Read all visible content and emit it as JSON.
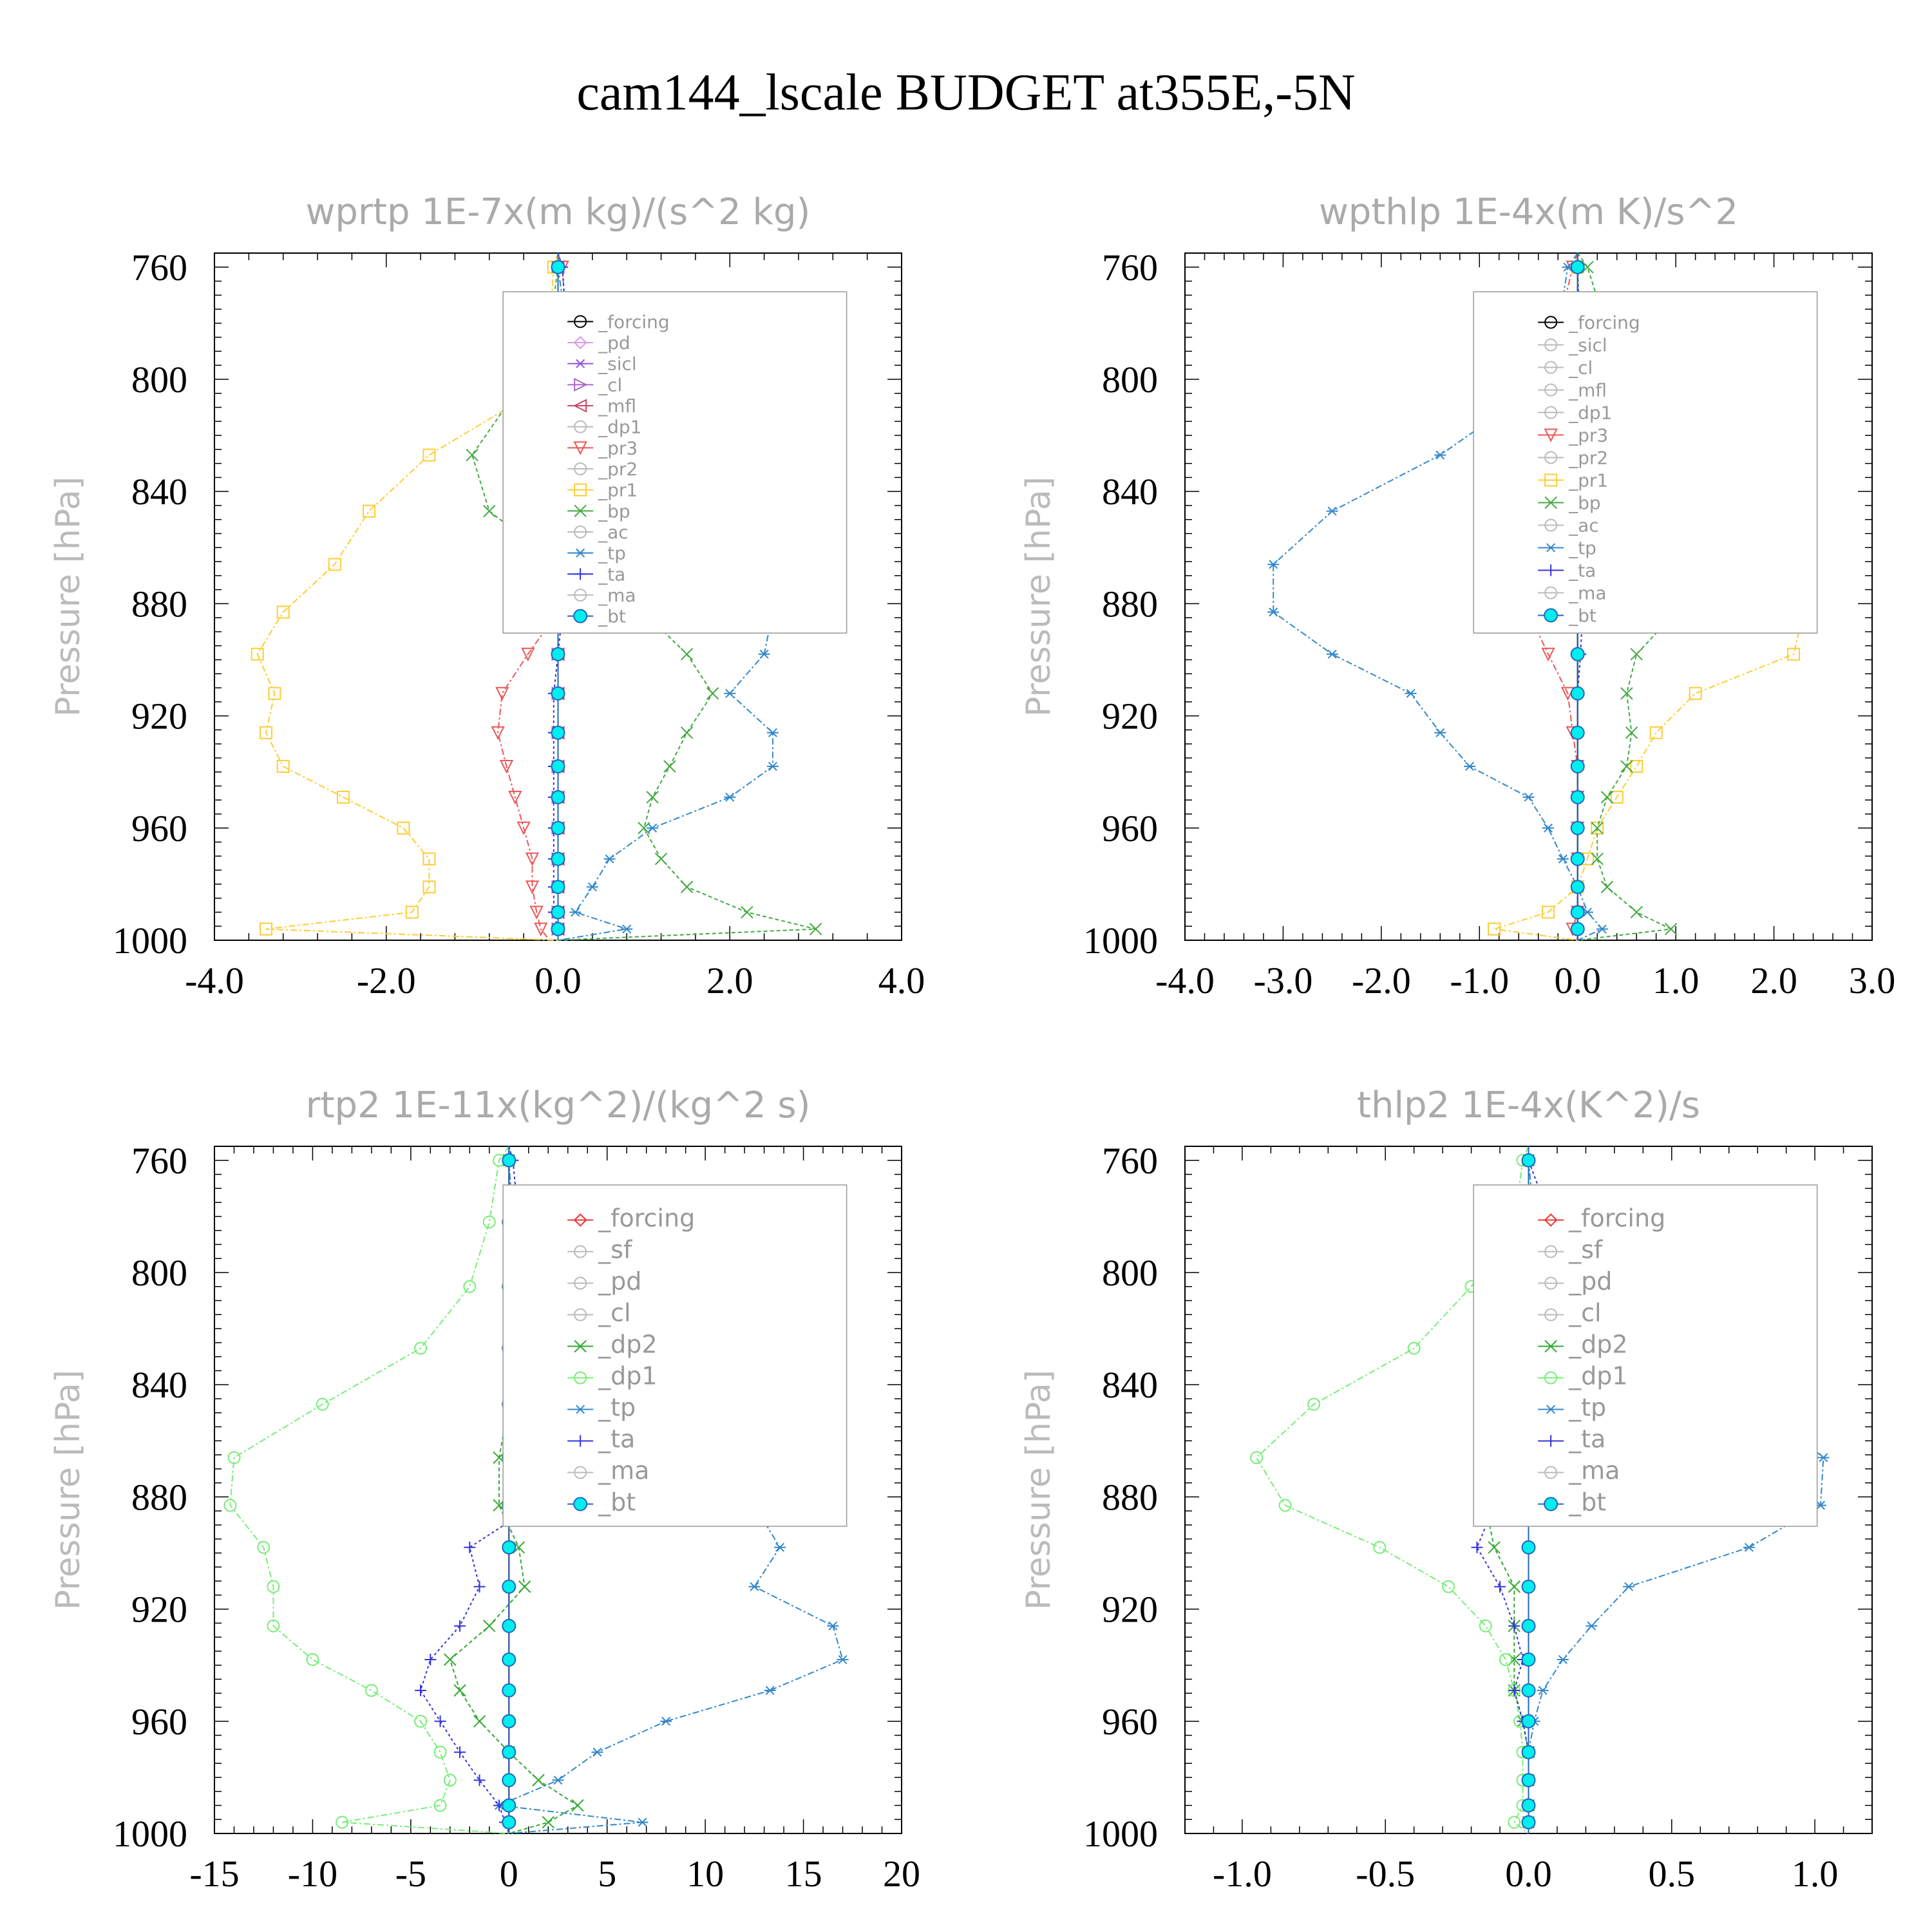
{
  "figure_title": "cam144_lscale  BUDGET at355E,-5N",
  "colors": {
    "forcing": "#000000",
    "pd": "#dd99ee",
    "sicl": "#9955dd",
    "cl": "#aa66cc",
    "mfl": "#cc4466",
    "dp1_w": "#ee6677",
    "pr3": "#ee5555",
    "pr2": "#ffaa66",
    "pr1": "#ffcc33",
    "bp": "#44aa44",
    "ac": "#88ee88",
    "tp": "#3388cc",
    "ta": "#3333dd",
    "ma": "#2266bb",
    "bt": "#00eeee",
    "forcing_v": "#ee3333",
    "sf": "#ee4444",
    "pd_v": "#ffaa44",
    "cl_v": "#ffcc22",
    "dp2": "#33aa33",
    "dp1_v": "#77ee77"
  },
  "chart_data": [
    {
      "type": "line",
      "title": "wprtp   1E-7x(m kg)/(s^2 kg)",
      "ylabel": "Pressure [hPa]",
      "xlabel": "",
      "ylim": [
        1000,
        755
      ],
      "xlim": [
        -4.0,
        4.0
      ],
      "xticks": [
        "-4.0",
        "-2.0",
        "0.0",
        "2.0",
        "4.0"
      ],
      "xtick_values": [
        -4,
        -2,
        0,
        2,
        4
      ],
      "yticks": [
        760,
        800,
        840,
        880,
        920,
        960,
        1000
      ],
      "legend": [
        "_forcing",
        "_pd",
        "_sicl",
        "_cl",
        "_mfl",
        "_dp1",
        "_pr3",
        "_pr2",
        "_pr1",
        "_bp",
        "_ac",
        "_tp",
        "_ta",
        "_ma",
        "_bt"
      ],
      "legend_position": "top-right",
      "y": [
        755,
        760,
        782,
        805,
        827,
        847,
        866,
        883,
        898,
        912,
        926,
        938,
        949,
        960,
        971,
        981,
        990,
        996,
        1000
      ],
      "series": [
        {
          "name": "_forcing",
          "color": "forcing",
          "dash": "",
          "marker": "circle",
          "values": [
            0,
            0,
            0,
            0,
            0,
            0,
            0,
            0,
            0,
            0,
            0,
            0,
            0,
            0,
            0,
            0,
            0,
            0,
            0
          ]
        },
        {
          "name": "_pd",
          "color": "pd",
          "dash": "6 4",
          "marker": "diamond",
          "values": [
            0,
            0,
            0,
            0,
            0,
            0,
            0,
            0,
            0,
            0,
            0,
            0,
            0,
            0,
            0,
            0,
            0,
            0,
            0
          ]
        },
        {
          "name": "_sicl",
          "color": "sicl",
          "dash": "6 4",
          "marker": "star",
          "values": [
            0,
            0,
            0,
            0,
            0,
            0,
            0,
            0,
            0,
            0,
            0,
            0,
            0,
            0,
            0,
            0,
            0,
            0,
            0
          ]
        },
        {
          "name": "_cl",
          "color": "cl",
          "dash": "6 4",
          "marker": "tri-right",
          "values": [
            0,
            0,
            0,
            0,
            0,
            0,
            0,
            0,
            0,
            0,
            0,
            0,
            0,
            0,
            0,
            0,
            0,
            0,
            0
          ]
        },
        {
          "name": "_mfl",
          "color": "mfl",
          "dash": "6 4",
          "marker": "tri-left",
          "values": [
            0,
            0,
            0,
            0,
            0,
            0,
            0,
            0,
            0,
            0,
            0,
            0,
            0,
            0,
            0,
            0,
            0,
            0,
            0
          ]
        },
        {
          "name": "_pr3",
          "color": "pr3",
          "dash": "10 4 3 4",
          "marker": "tri-down",
          "values": [
            0,
            0.05,
            0.1,
            0.25,
            0.45,
            0.45,
            0.35,
            0.0,
            -0.35,
            -0.65,
            -0.7,
            -0.6,
            -0.5,
            -0.4,
            -0.3,
            -0.3,
            -0.25,
            -0.2,
            -0.1
          ]
        },
        {
          "name": "_pr1",
          "color": "pr1",
          "dash": "10 4 3 4",
          "marker": "square",
          "values": [
            0,
            -0.05,
            -0.1,
            -0.3,
            -1.5,
            -2.2,
            -2.6,
            -3.2,
            -3.5,
            -3.3,
            -3.4,
            -3.2,
            -2.5,
            -1.8,
            -1.5,
            -1.5,
            -1.7,
            -3.4,
            0
          ]
        },
        {
          "name": "_bp",
          "color": "bp",
          "dash": "6 4",
          "marker": "x",
          "values": [
            0,
            0.0,
            -0.1,
            -0.5,
            -1.0,
            -0.8,
            0,
            1.0,
            1.5,
            1.8,
            1.5,
            1.3,
            1.1,
            1.0,
            1.2,
            1.5,
            2.2,
            3.0,
            0
          ]
        },
        {
          "name": "_tp",
          "color": "tp",
          "dash": "10 4 3 4",
          "marker": "star",
          "values": [
            0,
            0.0,
            0.1,
            0.5,
            1.4,
            2.0,
            2.4,
            2.5,
            2.4,
            2.0,
            2.5,
            2.5,
            2.0,
            1.1,
            0.6,
            0.4,
            0.2,
            0.8,
            0
          ]
        },
        {
          "name": "_ta",
          "color": "ta",
          "dash": "4 4",
          "marker": "plus",
          "values": [
            0,
            0.05,
            0.1,
            0.1,
            0.1,
            0.1,
            0.1,
            0.05,
            0,
            -0.05,
            -0.05,
            -0.05,
            -0.05,
            -0.05,
            -0.05,
            -0.05,
            -0.05,
            0,
            0
          ]
        },
        {
          "name": "_bt",
          "color": "ma",
          "dash": "",
          "marker": "dot",
          "values": [
            0,
            0,
            0,
            0,
            0,
            0,
            0,
            0,
            0,
            0,
            0,
            0,
            0,
            0,
            0,
            0,
            0,
            0,
            0
          ]
        }
      ]
    },
    {
      "type": "line",
      "title": "wpthlp   1E-4x(m K)/s^2",
      "ylabel": "Pressure [hPa]",
      "xlabel": "",
      "ylim": [
        1000,
        755
      ],
      "xlim": [
        -4.0,
        3.0
      ],
      "xticks": [
        "-4.0",
        "-3.0",
        "-2.0",
        "-1.0",
        "0.0",
        "1.0",
        "2.0",
        "3.0"
      ],
      "xtick_values": [
        -4,
        -3,
        -2,
        -1,
        0,
        1,
        2,
        3
      ],
      "yticks": [
        760,
        800,
        840,
        880,
        920,
        960,
        1000
      ],
      "legend": [
        "_forcing",
        "_sicl",
        "_cl",
        "_mfl",
        "_dp1",
        "_pr3",
        "_pr2",
        "_pr1",
        "_bp",
        "_ac",
        "_tp",
        "_ta",
        "_ma",
        "_bt"
      ],
      "legend_position": "top-right",
      "y": [
        755,
        760,
        782,
        805,
        827,
        847,
        866,
        883,
        898,
        912,
        926,
        938,
        949,
        960,
        971,
        981,
        990,
        996,
        1000
      ],
      "series": [
        {
          "name": "_forcing",
          "color": "forcing",
          "dash": "",
          "marker": "circle",
          "values": [
            0,
            0,
            0,
            0,
            0,
            0,
            0,
            0,
            0,
            0,
            0,
            0,
            0,
            0,
            0,
            0,
            0,
            0,
            0
          ]
        },
        {
          "name": "_pr3",
          "color": "pr3",
          "dash": "10 4 3 4",
          "marker": "tri-down",
          "values": [
            0,
            -0.05,
            -0.2,
            -0.5,
            -0.85,
            -0.9,
            -0.85,
            -0.5,
            -0.3,
            -0.1,
            -0.05,
            0,
            0,
            0,
            0,
            0,
            0,
            -0.05,
            0
          ]
        },
        {
          "name": "_pr1",
          "color": "pr1",
          "dash": "10 4 3 4",
          "marker": "square",
          "values": [
            0,
            0,
            0,
            -0.1,
            0.3,
            0.9,
            1.8,
            2.3,
            2.2,
            1.2,
            0.8,
            0.6,
            0.4,
            0.2,
            0.1,
            0,
            -0.3,
            -0.85,
            0
          ]
        },
        {
          "name": "_bp",
          "color": "bp",
          "dash": "6 4",
          "marker": "x",
          "values": [
            0,
            0.1,
            0.3,
            0.9,
            2.1,
            2.2,
            1.9,
            1.0,
            0.6,
            0.5,
            0.55,
            0.5,
            0.3,
            0.2,
            0.2,
            0.3,
            0.6,
            0.95,
            0
          ]
        },
        {
          "name": "_tp",
          "color": "tp",
          "dash": "10 4 3 4",
          "marker": "star",
          "values": [
            0,
            -0.1,
            -0.2,
            -0.5,
            -1.4,
            -2.5,
            -3.1,
            -3.1,
            -2.5,
            -1.7,
            -1.4,
            -1.1,
            -0.5,
            -0.3,
            -0.15,
            0,
            0.1,
            0.25,
            0
          ]
        },
        {
          "name": "_ta",
          "color": "ta",
          "dash": "4 4",
          "marker": "plus",
          "values": [
            0,
            0,
            0.02,
            0.02,
            0.02,
            0.03,
            0.05,
            0.05,
            0.03,
            0,
            0,
            0,
            0,
            0,
            0,
            0,
            0,
            0,
            0
          ]
        },
        {
          "name": "_bt",
          "color": "ma",
          "dash": "",
          "marker": "dot",
          "values": [
            0,
            0,
            0,
            0,
            0,
            0,
            0,
            0,
            0,
            0,
            0,
            0,
            0,
            0,
            0,
            0,
            0,
            0,
            0
          ]
        }
      ]
    },
    {
      "type": "line",
      "title": "rtp2   1E-11x(kg^2)/(kg^2 s)",
      "ylabel": "Pressure [hPa]",
      "xlabel": "",
      "ylim": [
        1000,
        755
      ],
      "xlim": [
        -15,
        20
      ],
      "xticks": [
        "-15",
        "-10",
        "-5",
        "0",
        "5",
        "10",
        "15",
        "20"
      ],
      "xtick_values": [
        -15,
        -10,
        -5,
        0,
        5,
        10,
        15,
        20
      ],
      "yticks": [
        760,
        800,
        840,
        880,
        920,
        960,
        1000
      ],
      "legend": [
        "_forcing",
        "_sf",
        "_pd",
        "_cl",
        "_dp2",
        "_dp1",
        "_tp",
        "_ta",
        "_ma",
        "_bt"
      ],
      "legend_position": "top-right",
      "y": [
        755,
        760,
        782,
        805,
        827,
        847,
        866,
        883,
        898,
        912,
        926,
        938,
        949,
        960,
        971,
        981,
        990,
        996,
        1000
      ],
      "series": [
        {
          "name": "_forcing",
          "color": "forcing_v",
          "dash": "",
          "marker": "diamond",
          "values": [
            0,
            0,
            0,
            0,
            0,
            0,
            0,
            0,
            0,
            0,
            0,
            0,
            0,
            0,
            0,
            0,
            0,
            0,
            0
          ]
        },
        {
          "name": "_dp2",
          "color": "dp2",
          "dash": "6 4",
          "marker": "x",
          "values": [
            0,
            0,
            0,
            0,
            0,
            0,
            -0.5,
            -0.5,
            0.5,
            0.8,
            -1.0,
            -3.0,
            -2.5,
            -1.5,
            0,
            1.5,
            3.5,
            2.0,
            0
          ]
        },
        {
          "name": "_dp1",
          "color": "dp1_v",
          "dash": "10 4 3 4",
          "marker": "circle",
          "values": [
            0,
            -0.5,
            -1.0,
            -2.0,
            -4.5,
            -9.5,
            -14.0,
            -14.2,
            -12.5,
            -12.0,
            -12.0,
            -10.0,
            -7.0,
            -4.5,
            -3.5,
            -3.0,
            -3.5,
            -8.5,
            0
          ]
        },
        {
          "name": "_tp",
          "color": "tp",
          "dash": "10 4 3 4",
          "marker": "star",
          "values": [
            0,
            0,
            0.2,
            0.5,
            1.3,
            6.5,
            11.0,
            12.5,
            13.8,
            12.5,
            16.5,
            17.0,
            13.3,
            8.0,
            4.5,
            2.5,
            -0.5,
            6.8,
            0
          ]
        },
        {
          "name": "_ta",
          "color": "ta",
          "dash": "4 4",
          "marker": "plus",
          "values": [
            0,
            0.2,
            0.5,
            1.8,
            2.8,
            2.5,
            3.3,
            1.3,
            -2.0,
            -1.5,
            -2.5,
            -4.0,
            -4.5,
            -3.5,
            -2.5,
            -1.5,
            -0.5,
            -0.2,
            0
          ]
        },
        {
          "name": "_bt",
          "color": "ma",
          "dash": "",
          "marker": "dot",
          "values": [
            0,
            0,
            0,
            0,
            0,
            0,
            0,
            0,
            0,
            0,
            0,
            0,
            0,
            0,
            0,
            0,
            0,
            0,
            0
          ]
        }
      ]
    },
    {
      "type": "line",
      "title": "thlp2   1E-4x(K^2)/s",
      "ylabel": "Pressure [hPa]",
      "xlabel": "",
      "ylim": [
        1000,
        755
      ],
      "xlim": [
        -1.2,
        1.2
      ],
      "xticks": [
        "-1.0",
        "-0.5",
        "0.0",
        "0.5",
        "1.0"
      ],
      "xtick_values": [
        -1.0,
        -0.5,
        0.0,
        0.5,
        1.0
      ],
      "yticks": [
        760,
        800,
        840,
        880,
        920,
        960,
        1000
      ],
      "legend": [
        "_forcing",
        "_sf",
        "_pd",
        "_cl",
        "_dp2",
        "_dp1",
        "_tp",
        "_ta",
        "_ma",
        "_bt"
      ],
      "legend_position": "top-right",
      "y": [
        755,
        760,
        782,
        805,
        827,
        847,
        866,
        883,
        898,
        912,
        926,
        938,
        949,
        960,
        971,
        981,
        990,
        996,
        1000
      ],
      "series": [
        {
          "name": "_forcing",
          "color": "forcing_v",
          "dash": "",
          "marker": "diamond",
          "values": [
            0,
            0,
            0,
            0,
            0,
            0,
            0,
            0,
            0,
            0,
            0,
            0,
            0,
            0,
            0,
            0,
            0,
            0,
            0
          ]
        },
        {
          "name": "_dp2",
          "color": "dp2",
          "dash": "6 4",
          "marker": "x",
          "values": [
            0,
            0,
            0,
            0,
            0,
            -0.02,
            -0.1,
            -0.15,
            -0.12,
            -0.05,
            -0.05,
            -0.05,
            -0.05,
            -0.02,
            0,
            0,
            0,
            0,
            0
          ]
        },
        {
          "name": "_dp1",
          "color": "dp1_v",
          "dash": "10 4 3 4",
          "marker": "circle",
          "values": [
            0,
            -0.02,
            -0.05,
            -0.2,
            -0.4,
            -0.75,
            -0.95,
            -0.85,
            -0.52,
            -0.28,
            -0.15,
            -0.08,
            -0.05,
            -0.03,
            -0.02,
            -0.02,
            -0.02,
            -0.05,
            0
          ]
        },
        {
          "name": "_tp",
          "color": "tp",
          "dash": "10 4 3 4",
          "marker": "star",
          "values": [
            0,
            0,
            0.02,
            0.05,
            0.18,
            0.8,
            1.03,
            1.02,
            0.77,
            0.35,
            0.22,
            0.12,
            0.05,
            0.02,
            0,
            0,
            0,
            0,
            0
          ]
        },
        {
          "name": "_ta",
          "color": "ta",
          "dash": "4 4",
          "marker": "plus",
          "values": [
            0,
            0,
            0.08,
            0.17,
            0.18,
            -0.02,
            -0.05,
            -0.12,
            -0.18,
            -0.1,
            -0.05,
            -0.02,
            -0.05,
            -0.02,
            0,
            0,
            0,
            0,
            0
          ]
        },
        {
          "name": "_bt",
          "color": "ma",
          "dash": "",
          "marker": "dot",
          "values": [
            0,
            0,
            0,
            0,
            0,
            0,
            0,
            0,
            0,
            0,
            0,
            0,
            0,
            0,
            0,
            0,
            0,
            0,
            0
          ]
        }
      ]
    }
  ]
}
